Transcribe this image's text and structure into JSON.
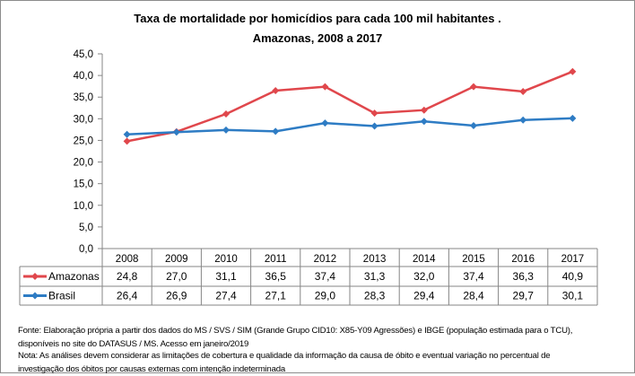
{
  "chart_data": {
    "type": "line",
    "title": "Taxa de mortalidade por homicídios para cada 100 mil habitantes .",
    "subtitle": "Amazonas, 2008 a 2017",
    "categories": [
      "2008",
      "2009",
      "2010",
      "2011",
      "2012",
      "2013",
      "2014",
      "2015",
      "2016",
      "2017"
    ],
    "series": [
      {
        "name": "Amazonas",
        "color": "#e0474c",
        "values": [
          24.8,
          27.0,
          31.1,
          36.5,
          37.4,
          31.3,
          32.0,
          37.4,
          36.3,
          40.9
        ],
        "labels": [
          "24,8",
          "27,0",
          "31,1",
          "36,5",
          "37,4",
          "31,3",
          "32,0",
          "37,4",
          "36,3",
          "40,9"
        ]
      },
      {
        "name": "Brasil",
        "color": "#2e7cc4",
        "values": [
          26.4,
          26.9,
          27.4,
          27.1,
          29.0,
          28.3,
          29.4,
          28.4,
          29.7,
          30.1
        ],
        "labels": [
          "26,4",
          "26,9",
          "27,4",
          "27,1",
          "29,0",
          "28,3",
          "29,4",
          "28,4",
          "29,7",
          "30,1"
        ]
      }
    ],
    "ylim": [
      0,
      45
    ],
    "yticks": [
      "0,0",
      "5,0",
      "10,0",
      "15,0",
      "20,0",
      "25,0",
      "30,0",
      "35,0",
      "40,0",
      "45,0"
    ],
    "grid": false,
    "legend": "data-table",
    "marker": "diamond"
  },
  "footnotes": {
    "source_line1": "Fonte: Elaboração própria a partir dos dados do MS / SVS / SIM (Grande Grupo CID10: X85-Y09 Agressões) e IBGE (população estimada para o TCU),",
    "source_line2": "disponíveis no site do DATASUS / MS. Acesso em janeiro/2019",
    "note_line1": "Nota:  As análises devem considerar as limitações de cobertura e qualidade da informação da causa de óbito e eventual variação no percentual de",
    "note_line2": "investigação dos óbitos por causas externas com intenção  indeterminada"
  }
}
